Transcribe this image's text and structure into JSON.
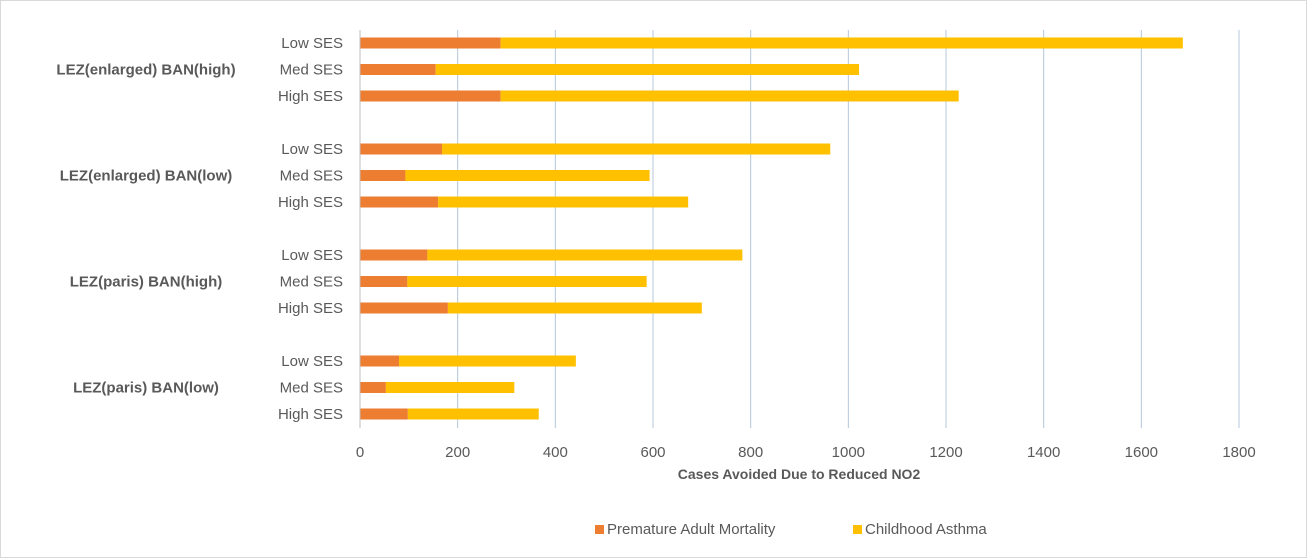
{
  "chart_data": {
    "type": "bar",
    "orientation": "horizontal",
    "stacked": true,
    "xlabel": "Cases Avoided Due to Reduced NO2",
    "xlim": [
      0,
      1800
    ],
    "x_ticks": [
      0,
      200,
      400,
      600,
      800,
      1000,
      1200,
      1400,
      1600,
      1800
    ],
    "grid": true,
    "legend_position": "bottom",
    "groups": [
      {
        "label": "LEZ(enlarged) BAN(high)",
        "categories": [
          "Low SES",
          "Med SES",
          "High SES"
        ],
        "series_values": {
          "Premature Adult Mortality": [
            288,
            155,
            288
          ],
          "Childhood Asthma": [
            1397,
            867,
            938
          ]
        }
      },
      {
        "label": "LEZ(enlarged) BAN(low)",
        "categories": [
          "Low SES",
          "Med SES",
          "High SES"
        ],
        "series_values": {
          "Premature Adult Mortality": [
            168,
            93,
            160
          ],
          "Childhood Asthma": [
            795,
            500,
            512
          ]
        }
      },
      {
        "label": "LEZ(paris) BAN(high)",
        "categories": [
          "Low SES",
          "Med SES",
          "High SES"
        ],
        "series_values": {
          "Premature Adult Mortality": [
            138,
            97,
            180
          ],
          "Childhood Asthma": [
            645,
            490,
            520
          ]
        }
      },
      {
        "label": "LEZ(paris) BAN(low)",
        "categories": [
          "Low SES",
          "Med SES",
          "High SES"
        ],
        "series_values": {
          "Premature Adult Mortality": [
            80,
            53,
            98
          ],
          "Childhood Asthma": [
            362,
            263,
            268
          ]
        }
      }
    ],
    "series": [
      {
        "name": "Premature Adult Mortality",
        "color": "#ed7d31"
      },
      {
        "name": "Childhood Asthma",
        "color": "#ffc000"
      }
    ]
  }
}
